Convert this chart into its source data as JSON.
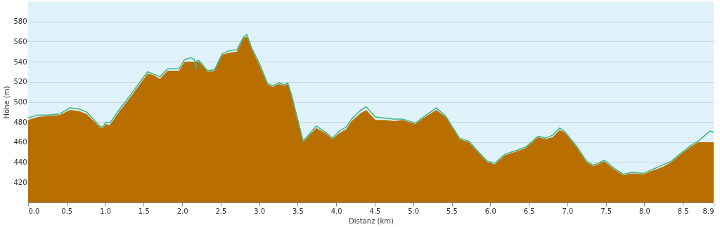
{
  "chart_data": {
    "type": "area",
    "xlabel": "Distanz  (km)",
    "ylabel": "Höhe (m)",
    "x": [
      0,
      0.12,
      0.25,
      0.41,
      0.54,
      0.66,
      0.76,
      0.93,
      0.97,
      1.01,
      1.06,
      1.18,
      1.32,
      1.55,
      1.62,
      1.71,
      1.81,
      1.96,
      2.03,
      2.11,
      2.16,
      2.18,
      2.19,
      2.22,
      2.33,
      2.42,
      2.52,
      2.61,
      2.71,
      2.8,
      2.84,
      2.9,
      3.01,
      3.11,
      3.18,
      3.26,
      3.33,
      3.37,
      3.42,
      3.57,
      3.64,
      3.74,
      3.86,
      3.95,
      4.04,
      4.13,
      4.2,
      4.32,
      4.39,
      4.51,
      4.63,
      4.75,
      4.86,
      5.03,
      5.13,
      5.3,
      5.42,
      5.6,
      5.72,
      5.96,
      6.06,
      6.19,
      6.31,
      6.46,
      6.62,
      6.72,
      6.81,
      6.9,
      6.96,
      7.11,
      7.25,
      7.34,
      7.4,
      7.48,
      7.61,
      7.73,
      7.84,
      7.99,
      8.08,
      8.23,
      8.35,
      8.46,
      8.61,
      8.7,
      8.85,
      8.9
    ],
    "series": [
      {
        "type": "area",
        "color": "#b86f00",
        "values": [
          482,
          485,
          486,
          487,
          492,
          491,
          488,
          475,
          474,
          478,
          477,
          490,
          504,
          528,
          527,
          523,
          531,
          531,
          540,
          540,
          540,
          540,
          540,
          540,
          530,
          531,
          547,
          549,
          550,
          564,
          565,
          553,
          535,
          517,
          515,
          518,
          516,
          518,
          505,
          460,
          466,
          474,
          469,
          463,
          469,
          473,
          481,
          489,
          492,
          482,
          482,
          481,
          482,
          478,
          484,
          492,
          485,
          463,
          460,
          440,
          438,
          447,
          450,
          454,
          465,
          463,
          465,
          472,
          470,
          456,
          440,
          436,
          438,
          441,
          433,
          427,
          429,
          428,
          431,
          435,
          440,
          447,
          456,
          460,
          460,
          460
        ]
      },
      {
        "type": "line",
        "color": "#3fb27a",
        "values": [
          484,
          487,
          487,
          488,
          494,
          493,
          490,
          476,
          475,
          480,
          479,
          492,
          506,
          530,
          528,
          525,
          533,
          533,
          542,
          544,
          542,
          532,
          541,
          541,
          531,
          532,
          548,
          551,
          552,
          565,
          567,
          554,
          537,
          518,
          516,
          519,
          517,
          519,
          507,
          461,
          467,
          476,
          470,
          464,
          471,
          475,
          483,
          492,
          495,
          485,
          484,
          483,
          483,
          479,
          485,
          494,
          486,
          464,
          461,
          441,
          439,
          448,
          451,
          455,
          466,
          464,
          467,
          474,
          471,
          457,
          441,
          437,
          439,
          442,
          434,
          428,
          430,
          429,
          432,
          437,
          441,
          448,
          457,
          461,
          471,
          470
        ]
      }
    ],
    "xlim": [
      0,
      8.9
    ],
    "ylim": [
      400,
      600
    ],
    "xticks": [
      {
        "value": 0,
        "label": "0.0"
      },
      0.5,
      {
        "value": 1,
        "label": "1.0"
      },
      1.5,
      {
        "value": 2,
        "label": "2.0"
      },
      2.5,
      {
        "value": 3,
        "label": "3.0"
      },
      3.5,
      {
        "value": 4,
        "label": "4.0"
      },
      4.5,
      {
        "value": 5,
        "label": "5.0"
      },
      5.5,
      {
        "value": 6,
        "label": "6.0"
      },
      6.5,
      {
        "value": 7,
        "label": "7.0"
      },
      7.5,
      {
        "value": 8,
        "label": "8.0"
      },
      8.5,
      8.9
    ],
    "yticks": [
      420,
      440,
      460,
      480,
      500,
      520,
      540,
      560,
      580
    ],
    "grid": "y",
    "line_style": "solid",
    "marker": "none"
  }
}
